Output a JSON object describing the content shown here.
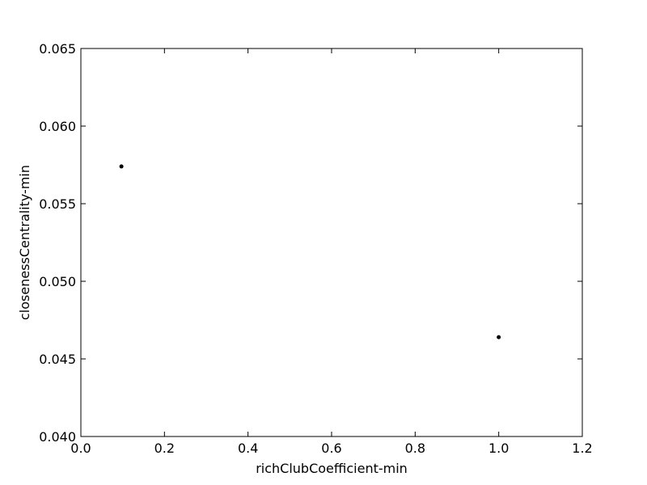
{
  "chart_data": {
    "type": "scatter",
    "title": "",
    "xlabel": "richClubCoefficient-min",
    "ylabel": "closenessCentrality-min",
    "xlim": [
      0.0,
      1.2
    ],
    "ylim": [
      0.04,
      0.065
    ],
    "x_ticks": [
      "0.0",
      "0.2",
      "0.4",
      "0.6",
      "0.8",
      "1.0",
      "1.2"
    ],
    "y_ticks": [
      "0.040",
      "0.045",
      "0.050",
      "0.055",
      "0.060",
      "0.065"
    ],
    "grid": false,
    "legend": "none",
    "series": [
      {
        "color": "#000000",
        "points": [
          {
            "x": 0.097,
            "y": 0.0574
          },
          {
            "x": 1.0,
            "y": 0.0464
          }
        ]
      }
    ]
  }
}
